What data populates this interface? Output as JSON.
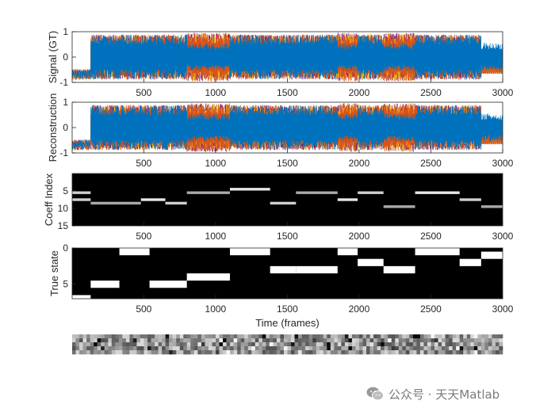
{
  "chart_data": [
    {
      "type": "line",
      "panel": "gt-signal",
      "ylabel": "Signal (GT)",
      "xlim": [
        1,
        3000
      ],
      "ylim": [
        -1,
        1
      ],
      "yticks": [
        -1,
        0,
        1
      ],
      "xticks": [
        500,
        1000,
        1500,
        2000,
        2500,
        3000
      ],
      "segment_bounds": [
        0,
        130,
        330,
        540,
        800,
        1100,
        1380,
        1560,
        1850,
        1990,
        2170,
        2390,
        2700,
        2850,
        3000
      ],
      "series_colors": [
        "#0072bd",
        "#d95319",
        "#edb120",
        "#7e2f8e",
        "#a2142f"
      ]
    },
    {
      "type": "line",
      "panel": "reconstruction",
      "ylabel": "Reconstruction",
      "xlabel": "Time (frames)",
      "xlim": [
        1,
        3000
      ],
      "ylim": [
        -1,
        1
      ],
      "yticks": [
        -1,
        0,
        1
      ],
      "xticks": [
        500,
        1000,
        1500,
        2000,
        2500,
        3000
      ]
    },
    {
      "type": "heatmap",
      "panel": "coefficients",
      "ylabel": "Coeff Index",
      "xlabel": "Time (frames)",
      "xlim": [
        1,
        3000
      ],
      "ylim": [
        0,
        15
      ],
      "yticks": [
        5,
        10,
        15
      ],
      "xticks": [
        500,
        1000,
        1500,
        2000,
        2500,
        3000
      ],
      "active": [
        {
          "t0": 0,
          "t1": 130,
          "rows": [
            6,
            8
          ]
        },
        {
          "t0": 130,
          "t1": 480,
          "rows": [
            9
          ]
        },
        {
          "t0": 480,
          "t1": 650,
          "rows": [
            8
          ]
        },
        {
          "t0": 650,
          "t1": 800,
          "rows": [
            9
          ]
        },
        {
          "t0": 800,
          "t1": 1100,
          "rows": [
            6
          ]
        },
        {
          "t0": 1100,
          "t1": 1380,
          "rows": [
            5
          ]
        },
        {
          "t0": 1380,
          "t1": 1560,
          "rows": [
            9
          ]
        },
        {
          "t0": 1560,
          "t1": 1850,
          "rows": [
            6
          ]
        },
        {
          "t0": 1850,
          "t1": 1990,
          "rows": [
            8
          ]
        },
        {
          "t0": 1990,
          "t1": 2170,
          "rows": [
            6
          ]
        },
        {
          "t0": 2170,
          "t1": 2390,
          "rows": [
            10
          ]
        },
        {
          "t0": 2390,
          "t1": 2700,
          "rows": [
            6
          ]
        },
        {
          "t0": 2700,
          "t1": 2850,
          "rows": [
            8
          ]
        },
        {
          "t0": 2850,
          "t1": 3000,
          "rows": [
            10
          ]
        }
      ]
    },
    {
      "type": "heatmap",
      "panel": "true-state",
      "ylabel": "True state",
      "xlabel": "Time (frames)",
      "xlim": [
        1,
        3000
      ],
      "ylim": [
        0,
        7
      ],
      "yticks": [
        0,
        5
      ],
      "xticks": [
        500,
        1000,
        1500,
        2000,
        2500,
        3000
      ],
      "states": [
        7,
        5,
        0,
        5,
        4,
        0,
        3,
        3,
        0,
        2,
        3,
        0,
        2,
        1
      ]
    },
    {
      "type": "heatmap",
      "panel": "dictionary-patches",
      "patches": 20
    }
  ],
  "watermark": {
    "logo": "wechat-icon",
    "text": "公众号 · 天天Matlab"
  }
}
